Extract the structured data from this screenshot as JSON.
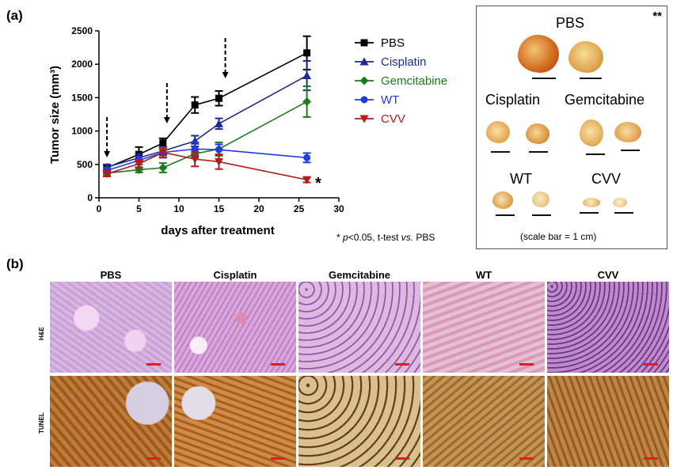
{
  "panel_labels": {
    "a": "(a)",
    "b": "(b)"
  },
  "chart_data": {
    "type": "line",
    "x": [
      1,
      5,
      8,
      12,
      15,
      26
    ],
    "xlabel": "days after treatment",
    "ylabel": "Tumor size (mm³)",
    "xlim": [
      0,
      30
    ],
    "ylim": [
      0,
      2500
    ],
    "xticks": [
      0,
      5,
      10,
      15,
      20,
      25,
      30
    ],
    "yticks": [
      0,
      500,
      1000,
      1500,
      2000,
      2500
    ],
    "grid": false,
    "legend_position": "right",
    "treatment_arrows_days": [
      1,
      8.5,
      15.8
    ],
    "significance_marker": "*",
    "significance_note": {
      "prefix": "* ",
      "p": "p",
      "mid": "<0.05, t-test ",
      "vs": "vs.",
      "suffix": " PBS"
    },
    "series": [
      {
        "name": "PBS",
        "color": "#000000",
        "marker": "square",
        "values": [
          450,
          650,
          820,
          1390,
          1490,
          2170
        ],
        "errors": [
          40,
          110,
          70,
          120,
          110,
          250
        ]
      },
      {
        "name": "Cisplatin",
        "color": "#1f2a8c",
        "marker": "triangle-up",
        "values": [
          460,
          600,
          700,
          850,
          1110,
          1830
        ],
        "errors": [
          40,
          60,
          60,
          80,
          80,
          220
        ]
      },
      {
        "name": "Gemcitabine",
        "color": "#1f7a1f",
        "marker": "diamond",
        "values": [
          370,
          420,
          450,
          660,
          730,
          1440
        ],
        "errors": [
          30,
          40,
          70,
          60,
          100,
          230
        ]
      },
      {
        "name": "WT",
        "color": "#1f3ce0",
        "marker": "circle",
        "values": [
          410,
          560,
          680,
          730,
          720,
          600
        ],
        "errors": [
          40,
          60,
          80,
          100,
          80,
          70
        ]
      },
      {
        "name": "CVV",
        "color": "#b31b1b",
        "marker": "triangle-down",
        "values": [
          360,
          510,
          680,
          580,
          540,
          270
        ],
        "errors": [
          40,
          60,
          70,
          110,
          110,
          40
        ]
      }
    ]
  },
  "photo_panel": {
    "significance": "**",
    "labels": [
      "PBS",
      "Cisplatin",
      "Gemcitabine",
      "WT",
      "CVV"
    ],
    "scale_note": "(scale bar = 1 cm)"
  },
  "histology": {
    "columns": [
      "PBS",
      "Cisplatin",
      "Gemcitabine",
      "WT",
      "CVV"
    ],
    "rows": [
      "H&E",
      "TUNEL"
    ]
  }
}
